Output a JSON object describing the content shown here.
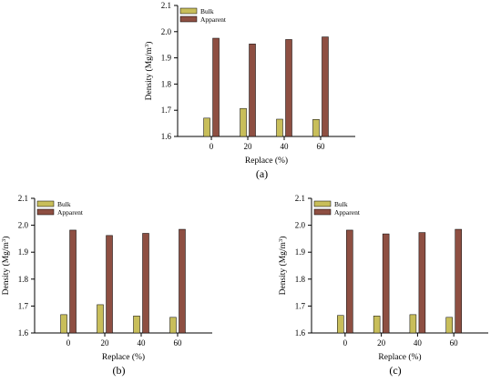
{
  "colors": {
    "bulk": "#C8BE5A",
    "apparent": "#8E4F42",
    "axis": "#000000"
  },
  "chart_data": [
    {
      "type": "bar",
      "caption": "(a)",
      "categories": [
        "0",
        "20",
        "40",
        "60"
      ],
      "series": [
        {
          "name": "Bulk",
          "values": [
            1.67,
            1.707,
            1.666,
            1.665
          ]
        },
        {
          "name": "Apparent",
          "values": [
            1.975,
            1.953,
            1.97,
            1.98
          ]
        }
      ],
      "xlabel": "Replace (%)",
      "ylabel": "Density (Mg/m³)",
      "ylim": [
        1.6,
        2.1
      ],
      "yticks": [
        "1.6",
        "1.7",
        "1.8",
        "1.9",
        "2.0",
        "2.1"
      ],
      "legend": "top-left",
      "grid": false
    },
    {
      "type": "bar",
      "caption": "(b)",
      "categories": [
        "0",
        "20",
        "40",
        "60"
      ],
      "series": [
        {
          "name": "Bulk",
          "values": [
            1.668,
            1.705,
            1.663,
            1.658
          ]
        },
        {
          "name": "Apparent",
          "values": [
            1.982,
            1.962,
            1.97,
            1.985
          ]
        }
      ],
      "xlabel": "Replace (%)",
      "ylabel": "Density (Mg/m³)",
      "ylim": [
        1.6,
        2.1
      ],
      "yticks": [
        "1.6",
        "1.7",
        "1.8",
        "1.9",
        "2.0",
        "2.1"
      ],
      "legend": "top-left",
      "grid": false
    },
    {
      "type": "bar",
      "caption": "(c)",
      "categories": [
        "0",
        "20",
        "40",
        "60"
      ],
      "series": [
        {
          "name": "Bulk",
          "values": [
            1.665,
            1.663,
            1.668,
            1.658
          ]
        },
        {
          "name": "Apparent",
          "values": [
            1.982,
            1.968,
            1.973,
            1.985
          ]
        }
      ],
      "xlabel": "Replace (%)",
      "ylabel": "Density (Mg/m³)",
      "ylim": [
        1.6,
        2.1
      ],
      "yticks": [
        "1.6",
        "1.7",
        "1.8",
        "1.9",
        "2.0",
        "2.1"
      ],
      "legend": "top-left",
      "grid": false
    }
  ]
}
